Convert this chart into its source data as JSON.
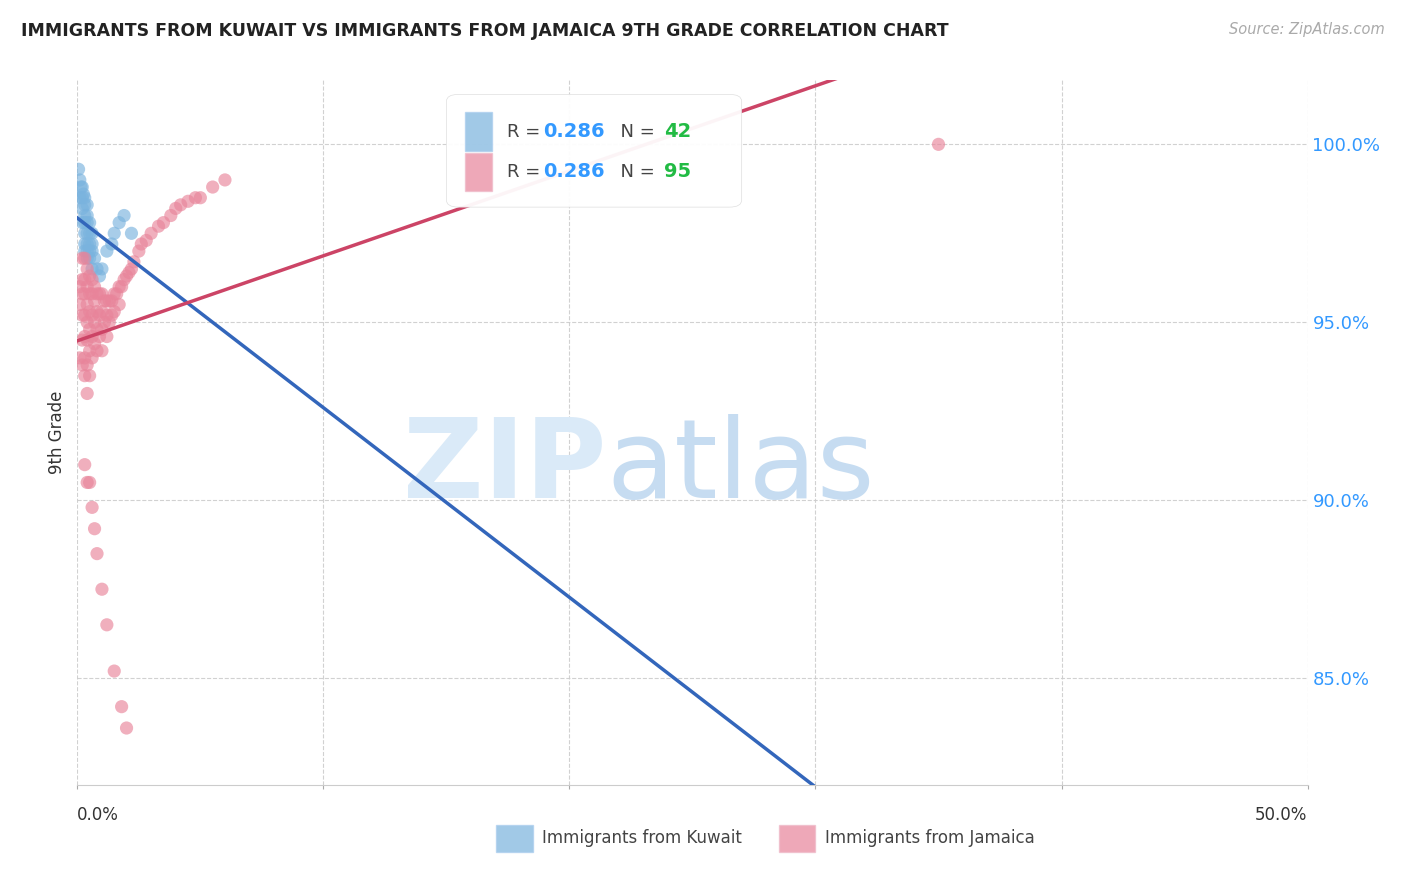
{
  "title": "IMMIGRANTS FROM KUWAIT VS IMMIGRANTS FROM JAMAICA 9TH GRADE CORRELATION CHART",
  "source": "Source: ZipAtlas.com",
  "ylabel": "9th Grade",
  "ytick_labels": [
    "100.0%",
    "95.0%",
    "90.0%",
    "85.0%"
  ],
  "ytick_values": [
    1.0,
    0.95,
    0.9,
    0.85
  ],
  "xlim": [
    0.0,
    0.5
  ],
  "ylim": [
    0.82,
    1.018
  ],
  "color_kuwait": "#7ab3de",
  "color_jamaica": "#e8849a",
  "color_trendline_kuwait": "#3366bb",
  "color_trendline_jamaica": "#cc4466",
  "background_color": "#ffffff",
  "kuwait_x": [
    0.0005,
    0.001,
    0.001,
    0.0015,
    0.002,
    0.002,
    0.002,
    0.002,
    0.0025,
    0.003,
    0.003,
    0.003,
    0.003,
    0.003,
    0.003,
    0.003,
    0.004,
    0.004,
    0.004,
    0.004,
    0.004,
    0.004,
    0.004,
    0.005,
    0.005,
    0.005,
    0.005,
    0.005,
    0.006,
    0.006,
    0.006,
    0.006,
    0.007,
    0.008,
    0.009,
    0.01,
    0.012,
    0.014,
    0.015,
    0.017,
    0.019,
    0.022
  ],
  "kuwait_y": [
    0.993,
    0.99,
    0.985,
    0.988,
    0.988,
    0.985,
    0.982,
    0.978,
    0.986,
    0.985,
    0.983,
    0.98,
    0.978,
    0.975,
    0.972,
    0.97,
    0.983,
    0.98,
    0.978,
    0.975,
    0.972,
    0.97,
    0.968,
    0.978,
    0.975,
    0.972,
    0.97,
    0.968,
    0.975,
    0.972,
    0.97,
    0.965,
    0.968,
    0.965,
    0.963,
    0.965,
    0.97,
    0.972,
    0.975,
    0.978,
    0.98,
    0.975
  ],
  "jamaica_x": [
    0.001,
    0.001,
    0.001,
    0.002,
    0.002,
    0.002,
    0.002,
    0.002,
    0.002,
    0.003,
    0.003,
    0.003,
    0.003,
    0.003,
    0.003,
    0.003,
    0.004,
    0.004,
    0.004,
    0.004,
    0.004,
    0.004,
    0.004,
    0.005,
    0.005,
    0.005,
    0.005,
    0.005,
    0.005,
    0.006,
    0.006,
    0.006,
    0.006,
    0.006,
    0.007,
    0.007,
    0.007,
    0.007,
    0.008,
    0.008,
    0.008,
    0.008,
    0.009,
    0.009,
    0.009,
    0.01,
    0.01,
    0.01,
    0.01,
    0.011,
    0.011,
    0.012,
    0.012,
    0.012,
    0.013,
    0.013,
    0.014,
    0.014,
    0.015,
    0.015,
    0.016,
    0.017,
    0.017,
    0.018,
    0.019,
    0.02,
    0.021,
    0.022,
    0.023,
    0.025,
    0.026,
    0.028,
    0.03,
    0.033,
    0.035,
    0.038,
    0.04,
    0.042,
    0.045,
    0.048,
    0.05,
    0.055,
    0.06,
    0.003,
    0.004,
    0.005,
    0.006,
    0.007,
    0.008,
    0.01,
    0.012,
    0.015,
    0.018,
    0.02,
    0.35
  ],
  "jamaica_y": [
    0.96,
    0.955,
    0.94,
    0.968,
    0.962,
    0.958,
    0.952,
    0.945,
    0.938,
    0.968,
    0.962,
    0.958,
    0.952,
    0.946,
    0.94,
    0.935,
    0.965,
    0.96,
    0.955,
    0.95,
    0.945,
    0.938,
    0.93,
    0.963,
    0.958,
    0.953,
    0.948,
    0.942,
    0.935,
    0.962,
    0.958,
    0.952,
    0.946,
    0.94,
    0.96,
    0.956,
    0.95,
    0.944,
    0.958,
    0.953,
    0.948,
    0.942,
    0.958,
    0.952,
    0.946,
    0.958,
    0.953,
    0.948,
    0.942,
    0.956,
    0.95,
    0.956,
    0.952,
    0.946,
    0.956,
    0.95,
    0.956,
    0.952,
    0.958,
    0.953,
    0.958,
    0.96,
    0.955,
    0.96,
    0.962,
    0.963,
    0.964,
    0.965,
    0.967,
    0.97,
    0.972,
    0.973,
    0.975,
    0.977,
    0.978,
    0.98,
    0.982,
    0.983,
    0.984,
    0.985,
    0.985,
    0.988,
    0.99,
    0.91,
    0.905,
    0.905,
    0.898,
    0.892,
    0.885,
    0.875,
    0.865,
    0.852,
    0.842,
    0.836,
    1.0
  ]
}
